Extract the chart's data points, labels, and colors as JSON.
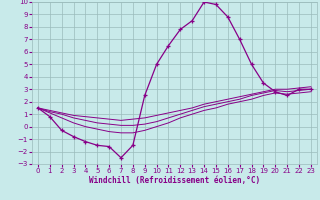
{
  "xlabel": "Windchill (Refroidissement éolien,°C)",
  "background_color": "#c8eaea",
  "grid_color": "#9bbcbc",
  "line_color": "#880088",
  "hours": [
    0,
    1,
    2,
    3,
    4,
    5,
    6,
    7,
    8,
    9,
    10,
    11,
    12,
    13,
    14,
    15,
    16,
    17,
    18,
    19,
    20,
    21,
    22,
    23
  ],
  "temp_line": [
    1.5,
    0.8,
    -0.3,
    -0.8,
    -1.2,
    -1.5,
    -1.6,
    -2.5,
    -1.5,
    2.5,
    5.0,
    6.5,
    7.8,
    8.5,
    10.0,
    9.8,
    8.8,
    7.0,
    5.0,
    3.5,
    2.8,
    2.5,
    3.0,
    3.0
  ],
  "line_flat1": [
    1.5,
    1.3,
    1.1,
    0.9,
    0.8,
    0.7,
    0.6,
    0.5,
    0.6,
    0.7,
    0.9,
    1.1,
    1.3,
    1.5,
    1.8,
    2.0,
    2.2,
    2.4,
    2.6,
    2.8,
    3.0,
    3.0,
    3.1,
    3.2
  ],
  "line_flat2": [
    1.5,
    1.2,
    1.0,
    0.7,
    0.5,
    0.3,
    0.2,
    0.1,
    0.1,
    0.2,
    0.4,
    0.7,
    1.0,
    1.3,
    1.6,
    1.8,
    2.0,
    2.2,
    2.5,
    2.7,
    2.9,
    2.8,
    2.9,
    3.0
  ],
  "line_flat3": [
    1.5,
    1.1,
    0.7,
    0.3,
    0.0,
    -0.2,
    -0.4,
    -0.5,
    -0.5,
    -0.3,
    0.0,
    0.3,
    0.7,
    1.0,
    1.3,
    1.5,
    1.8,
    2.0,
    2.2,
    2.5,
    2.7,
    2.6,
    2.7,
    2.8
  ],
  "ylim": [
    -3,
    10
  ],
  "xlim": [
    0,
    23
  ],
  "yticks": [
    -3,
    -2,
    -1,
    0,
    1,
    2,
    3,
    4,
    5,
    6,
    7,
    8,
    9,
    10
  ],
  "xticks": [
    0,
    1,
    2,
    3,
    4,
    5,
    6,
    7,
    8,
    9,
    10,
    11,
    12,
    13,
    14,
    15,
    16,
    17,
    18,
    19,
    20,
    21,
    22,
    23
  ]
}
